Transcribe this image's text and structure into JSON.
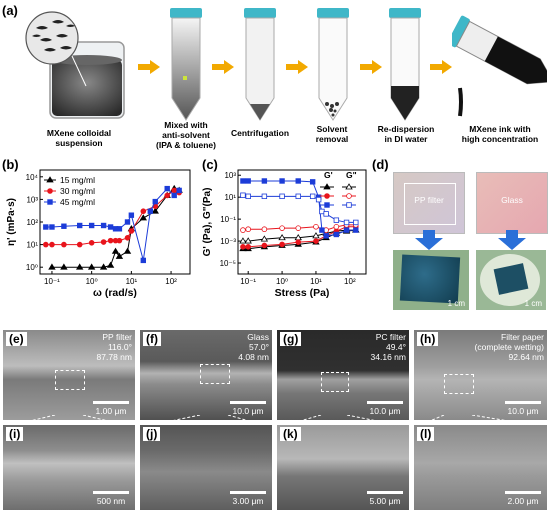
{
  "panel_labels": {
    "a": "(a)",
    "b": "(b)",
    "c": "(c)",
    "d": "(d)",
    "e": "(e)",
    "f": "(f)",
    "g": "(g)",
    "h": "(h)",
    "i": "(i)",
    "j": "(j)",
    "k": "(k)",
    "l": "(l)"
  },
  "steps": [
    {
      "caption": "MXene colloidal\nsuspension"
    },
    {
      "caption": "Mixed with\nanti-solvent\n(IPA & toluene)"
    },
    {
      "caption": "Centrifugation"
    },
    {
      "caption": "Solvent\nremoval"
    },
    {
      "caption": "Re-dispersion\nin DI water"
    },
    {
      "caption": "MXene ink with\nhigh concentration"
    }
  ],
  "colors": {
    "black": "#000000",
    "red": "#e8141c",
    "blue": "#1c3cd8",
    "arrow": "#f2a900",
    "cap": "#3fb7c8"
  },
  "chart_data": [
    {
      "type": "line",
      "ylabel": "η' (mPa·s)",
      "xlabel": "ω (rad/s)",
      "x_scale": "log",
      "y_scale": "log",
      "xlim": [
        0.05,
        300
      ],
      "ylim": [
        0.5,
        20000
      ],
      "x_ticks": [
        "10⁻¹",
        "10⁰",
        "10¹",
        "10²"
      ],
      "y_ticks": [
        "10⁰",
        "10¹",
        "10²",
        "10³",
        "10⁴"
      ],
      "legend_position": "top-left",
      "series": [
        {
          "name": "15 mg/ml",
          "marker": "triangle",
          "color": "#000000",
          "x": [
            0.1,
            0.2,
            0.5,
            1,
            2,
            3,
            4,
            5,
            8,
            10,
            20,
            40,
            80,
            120,
            160
          ],
          "y": [
            1,
            1,
            1,
            1,
            1,
            1.2,
            5,
            3,
            5,
            50,
            150,
            300,
            1500,
            3000,
            2500
          ]
        },
        {
          "name": "30 mg/ml",
          "marker": "circle",
          "color": "#e8141c",
          "x": [
            0.07,
            0.1,
            0.2,
            0.5,
            1,
            2,
            3,
            4,
            5,
            8,
            10,
            20,
            40,
            80,
            120,
            160
          ],
          "y": [
            10,
            10,
            10,
            10,
            12,
            13,
            15,
            15,
            15,
            20,
            40,
            300,
            500,
            1500,
            2500,
            2000
          ]
        },
        {
          "name": "45 mg/ml",
          "marker": "square",
          "color": "#1c3cd8",
          "x": [
            0.07,
            0.1,
            0.2,
            0.5,
            1,
            2,
            3,
            4,
            5,
            8,
            10,
            20,
            30,
            40,
            80,
            120,
            160
          ],
          "y": [
            60,
            60,
            65,
            70,
            70,
            70,
            60,
            50,
            50,
            100,
            200,
            2,
            300,
            800,
            3000,
            1500,
            2500
          ]
        }
      ]
    },
    {
      "type": "line",
      "ylabel": "G' (Pa), G\"(Pa)",
      "xlabel": "Stress (Pa)",
      "x_scale": "log",
      "y_scale": "log",
      "xlim": [
        0.05,
        300
      ],
      "ylim": [
        1e-06,
        3000
      ],
      "x_ticks": [
        "10⁻¹",
        "10⁰",
        "10¹",
        "10²"
      ],
      "y_ticks": [
        "10⁻⁵",
        "10⁻³",
        "10⁻¹",
        "10¹",
        "10³"
      ],
      "legend_position": "top-right",
      "legend_header": [
        "G'",
        "G\""
      ],
      "series": [
        {
          "name": "15 mg/ml G'",
          "marker": "triangle",
          "filled": true,
          "color": "#000000",
          "x": [
            0.07,
            0.1,
            0.3,
            1,
            3,
            10,
            20,
            40,
            80,
            150
          ],
          "y": [
            0.0002,
            0.0002,
            0.0003,
            0.0004,
            0.0005,
            0.0008,
            0.002,
            0.005,
            0.008,
            0.01
          ]
        },
        {
          "name": "15 mg/ml G\"",
          "marker": "triangle",
          "filled": false,
          "color": "#000000",
          "x": [
            0.07,
            0.1,
            0.3,
            1,
            3,
            10,
            20,
            40,
            80,
            150
          ],
          "y": [
            0.001,
            0.001,
            0.0015,
            0.002,
            0.002,
            0.003,
            0.005,
            0.008,
            0.01,
            0.01
          ]
        },
        {
          "name": "30 mg/ml G'",
          "marker": "circle",
          "filled": true,
          "color": "#e8141c",
          "x": [
            0.07,
            0.1,
            0.3,
            1,
            3,
            10,
            20,
            40,
            80,
            150
          ],
          "y": [
            0.0003,
            0.0003,
            0.0004,
            0.0005,
            0.0008,
            0.001,
            0.003,
            0.008,
            0.02,
            0.02
          ]
        },
        {
          "name": "30 mg/ml G\"",
          "marker": "circle",
          "filled": false,
          "color": "#e8141c",
          "x": [
            0.07,
            0.1,
            0.3,
            1,
            3,
            10,
            20,
            40,
            80,
            150
          ],
          "y": [
            0.01,
            0.012,
            0.012,
            0.015,
            0.015,
            0.02,
            0.01,
            0.02,
            0.03,
            0.03
          ]
        },
        {
          "name": "45 mg/ml G'",
          "marker": "square",
          "filled": true,
          "color": "#1c3cd8",
          "x": [
            0.07,
            0.1,
            0.3,
            1,
            3,
            8,
            12,
            15,
            20,
            40,
            80,
            150
          ],
          "y": [
            300,
            300,
            300,
            300,
            300,
            250,
            10,
            0.01,
            0.003,
            0.004,
            0.01,
            0.01
          ]
        },
        {
          "name": "45 mg/ml G\"",
          "marker": "square",
          "filled": false,
          "color": "#1c3cd8",
          "x": [
            0.07,
            0.1,
            0.3,
            1,
            3,
            8,
            12,
            15,
            20,
            40,
            80,
            150
          ],
          "y": [
            15,
            12,
            12,
            12,
            12,
            12,
            6,
            0.5,
            0.3,
            0.08,
            0.05,
            0.05
          ]
        }
      ]
    }
  ],
  "photos": {
    "pp_label": "PP filter",
    "glass_label": "Glass",
    "scale": "1 cm"
  },
  "sem_top": [
    {
      "letter": "(e)",
      "info": "PP filter\n116.0°\n87.78 nm",
      "scale": "1.00 μm"
    },
    {
      "letter": "(f)",
      "info": "Glass\n57.0°\n4.08 nm",
      "scale": "10.0 μm"
    },
    {
      "letter": "(g)",
      "info": "PC filter\n49.4°\n34.16 nm",
      "scale": "10.0 μm"
    },
    {
      "letter": "(h)",
      "info": "Filter paper\n(complete wetting)\n92.64 nm",
      "scale": "10.0 μm"
    }
  ],
  "sem_bottom": [
    {
      "letter": "(i)",
      "scale": "500 nm"
    },
    {
      "letter": "(j)",
      "scale": "3.00 μm"
    },
    {
      "letter": "(k)",
      "scale": "5.00 μm"
    },
    {
      "letter": "(l)",
      "scale": "2.00 μm"
    }
  ]
}
